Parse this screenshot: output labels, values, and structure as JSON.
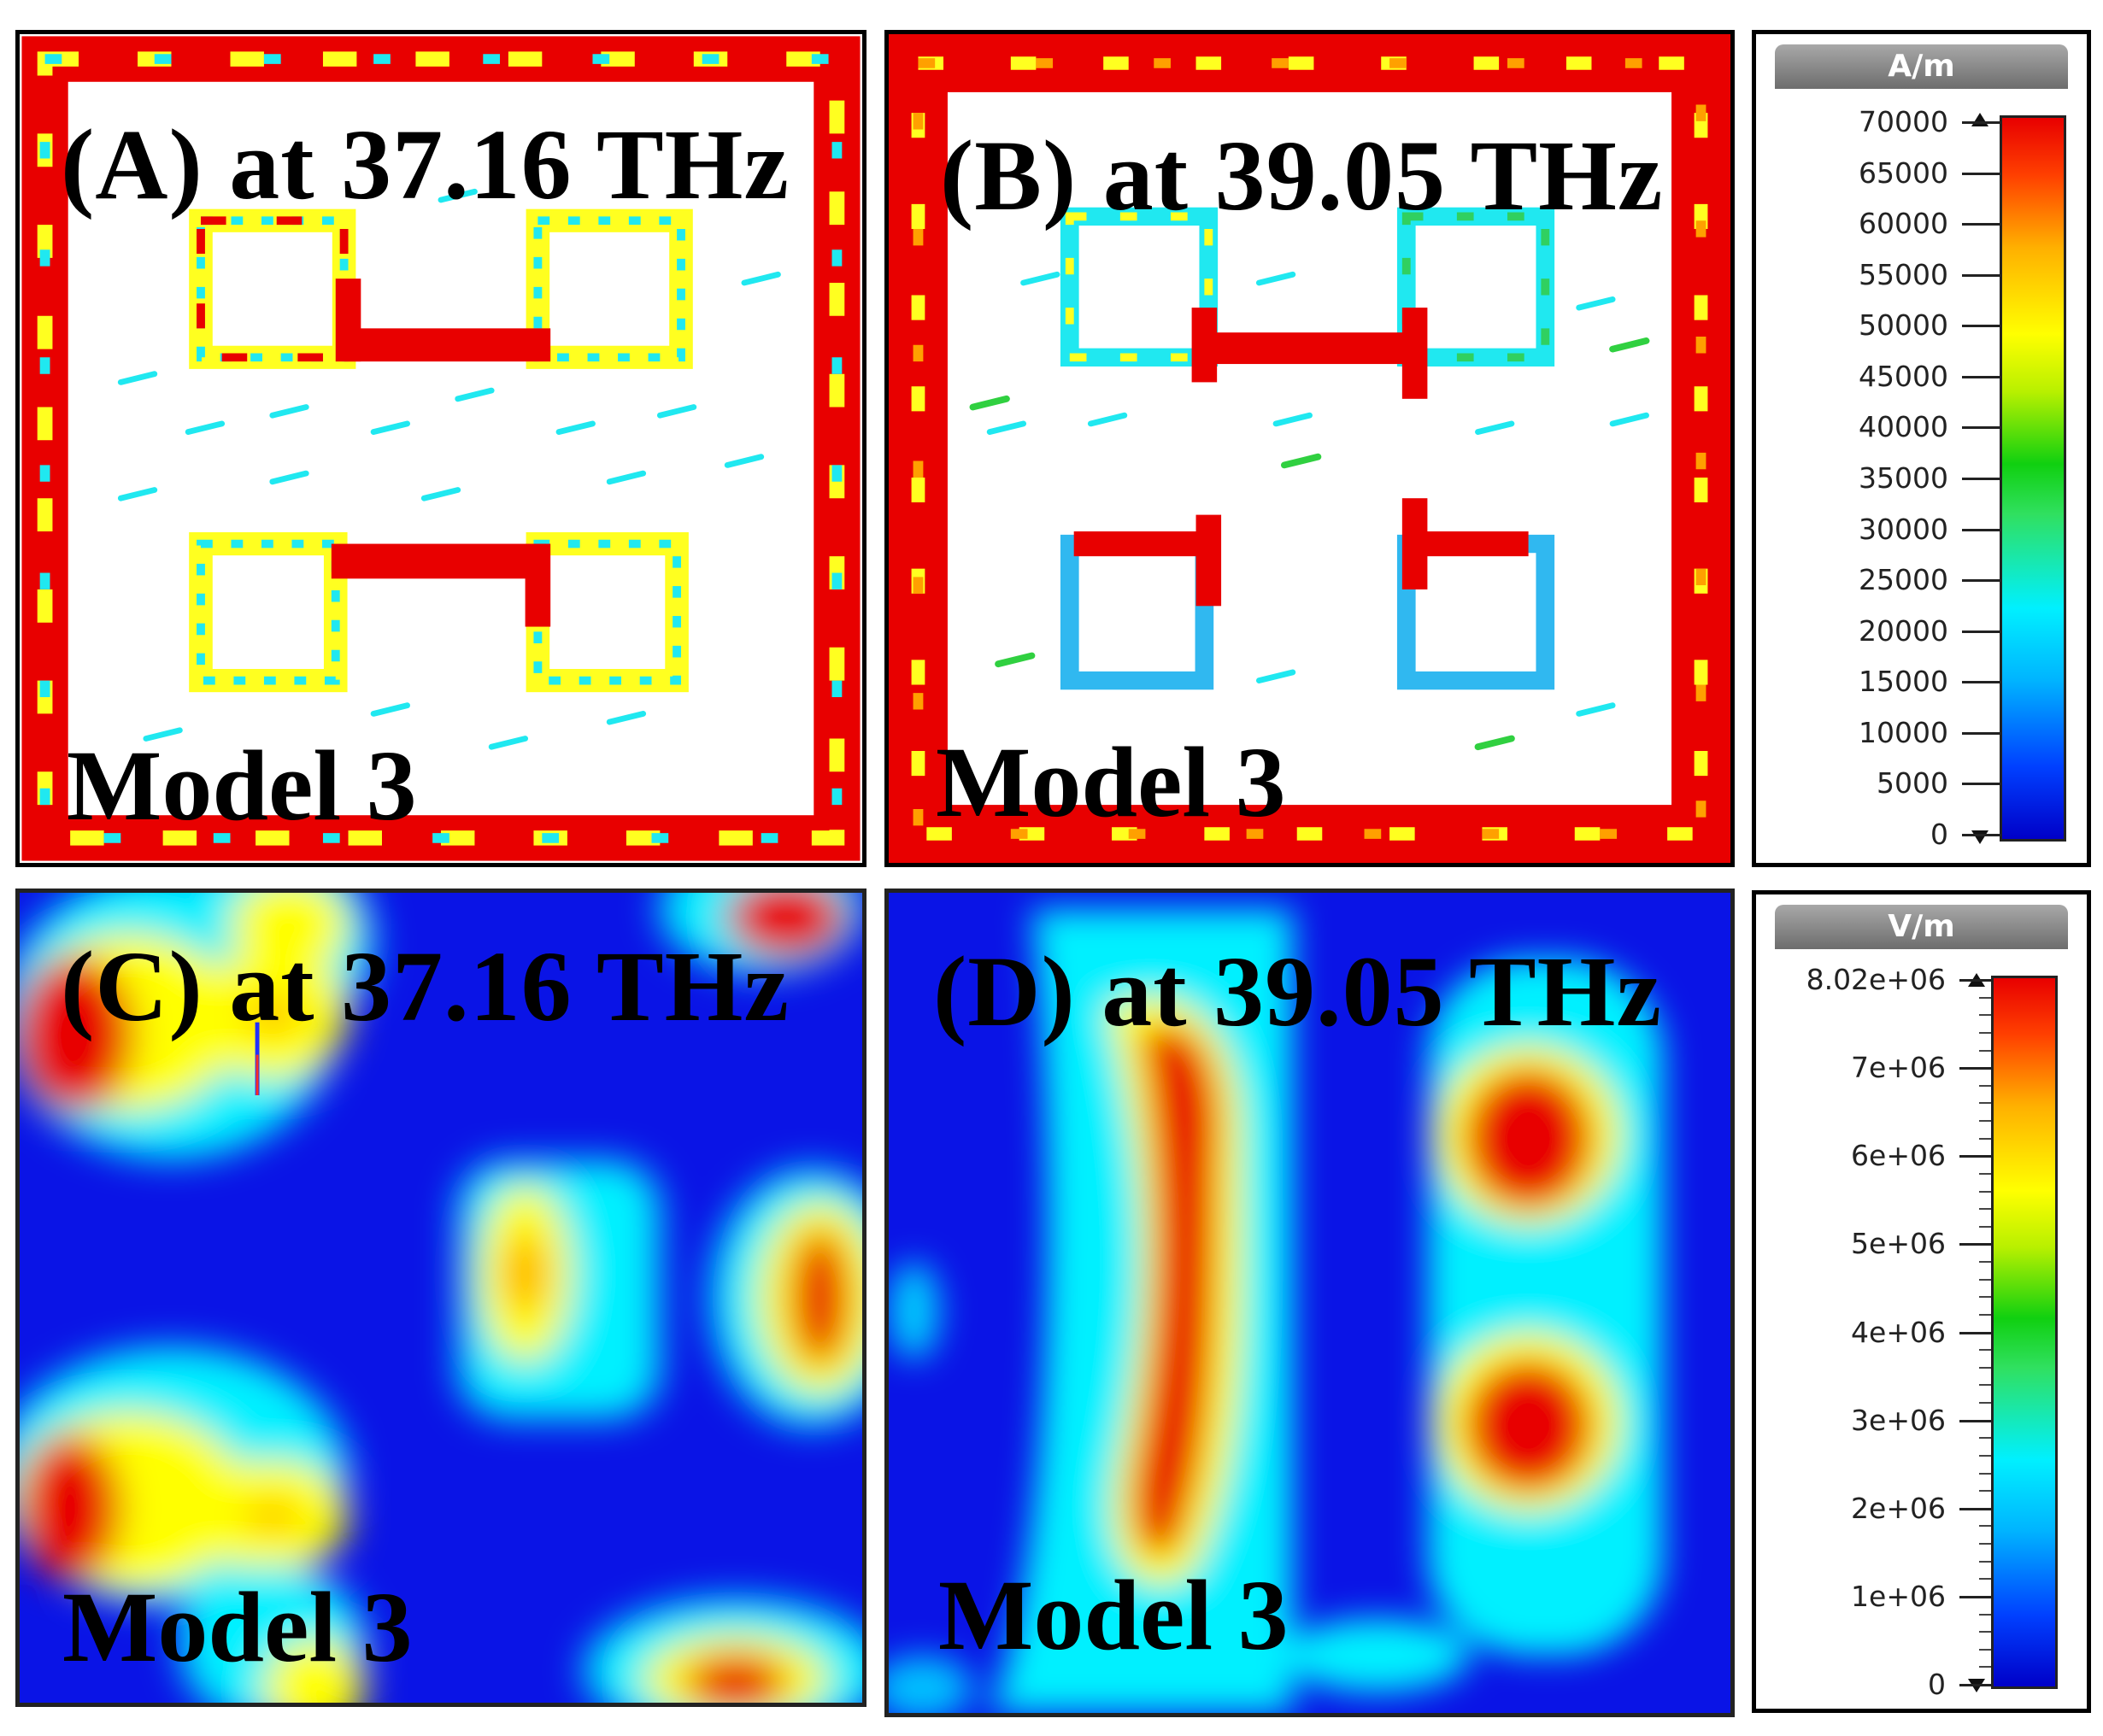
{
  "panels": [
    {
      "id": "A",
      "label": "(A) at 37.16 THz",
      "model": "Model 3"
    },
    {
      "id": "B",
      "label": "(B) at 39.05 THz",
      "model": "Model 3"
    },
    {
      "id": "C",
      "label": "(C) at 37.16 THz",
      "model": "Model 3"
    },
    {
      "id": "D",
      "label": "(D) at 39.05 THz",
      "model": "Model 3"
    }
  ],
  "legend_current": {
    "unit": "A/m",
    "ticks": [
      "70000",
      "65000",
      "60000",
      "55000",
      "50000",
      "45000",
      "40000",
      "35000",
      "30000",
      "25000",
      "20000",
      "15000",
      "10000",
      "5000",
      "0"
    ]
  },
  "legend_field": {
    "unit": "V/m",
    "ticks": [
      "8.02e+06",
      "7e+06",
      "6e+06",
      "5e+06",
      "4e+06",
      "3e+06",
      "2e+06",
      "1e+06",
      "0"
    ]
  },
  "colors": {
    "field_background": "#0a14e6",
    "hot": "#e80000",
    "warm": "#ffff00",
    "cool": "#00f0ff"
  }
}
